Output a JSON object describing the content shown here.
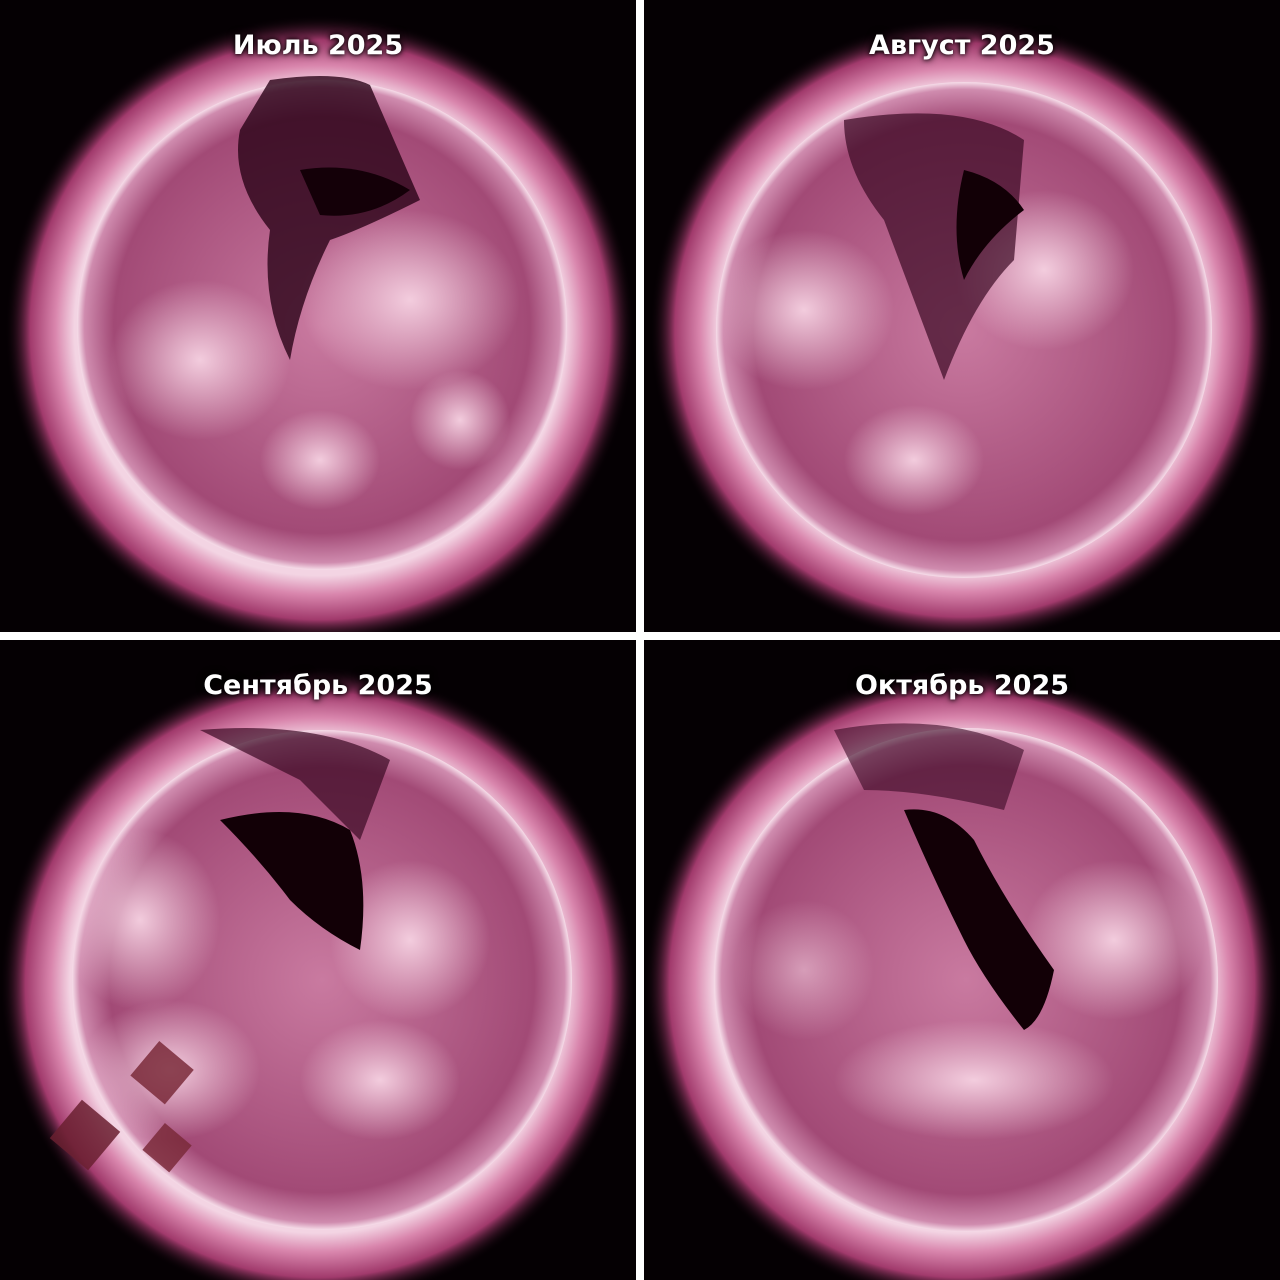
{
  "panels": [
    {
      "label": "Июль 2025"
    },
    {
      "label": "Август 2025"
    },
    {
      "label": "Сентябрь 2025"
    },
    {
      "label": "Октябрь 2025"
    }
  ],
  "colors": {
    "background": "#050003",
    "divider": "#ffffff",
    "corona": "#c0487e",
    "disk": "#a44a78",
    "bright_region": "#f2c6da",
    "coronal_hole": "#1a0010"
  }
}
